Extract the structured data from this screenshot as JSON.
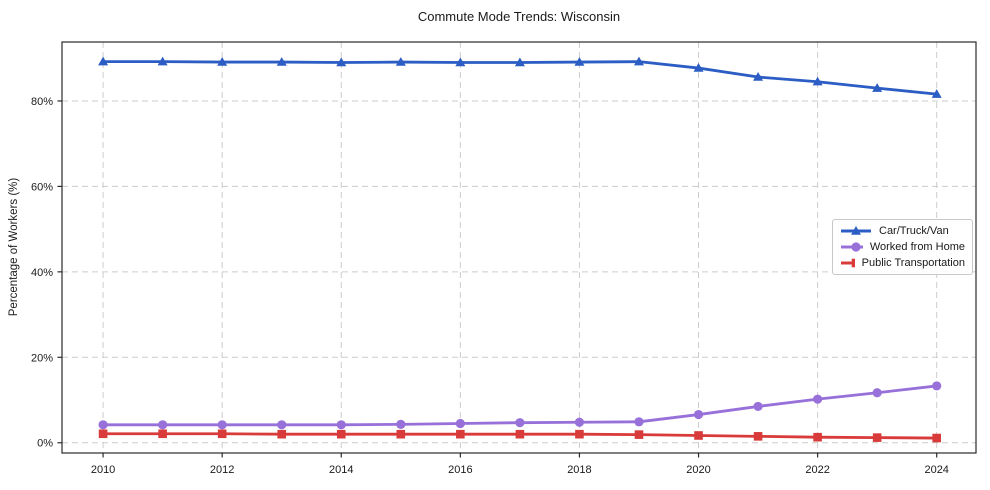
{
  "chart_data": {
    "type": "line",
    "title": "Commute Mode Trends: Wisconsin",
    "xlabel": "",
    "ylabel": "Percentage of Workers (%)",
    "x": [
      2010,
      2011,
      2012,
      2013,
      2014,
      2015,
      2016,
      2017,
      2018,
      2019,
      2020,
      2021,
      2022,
      2023,
      2024
    ],
    "series": [
      {
        "name": "Car/Truck/Van",
        "color": "#2b5dc4",
        "marker": "triangle",
        "values": [
          89.2,
          89.2,
          89.1,
          89.1,
          89.0,
          89.1,
          89.0,
          89.0,
          89.1,
          89.2,
          87.7,
          85.6,
          84.5,
          83.0,
          81.6
        ]
      },
      {
        "name": "Worked from Home",
        "color": "#9770d9",
        "marker": "circle",
        "values": [
          4.2,
          4.2,
          4.2,
          4.2,
          4.2,
          4.3,
          4.5,
          4.7,
          4.8,
          4.9,
          6.6,
          8.5,
          10.2,
          11.7,
          13.3
        ]
      },
      {
        "name": "Public Transportation",
        "color": "#d93b3b",
        "marker": "square",
        "values": [
          2.1,
          2.1,
          2.1,
          2.0,
          2.0,
          2.0,
          2.0,
          2.0,
          2.0,
          1.9,
          1.7,
          1.5,
          1.3,
          1.2,
          1.1
        ]
      }
    ],
    "xlim": [
      2009.31,
      2024.66
    ],
    "ylim": [
      -2.4,
      93.8
    ],
    "x_ticks": [
      2010,
      2012,
      2014,
      2016,
      2018,
      2020,
      2022,
      2024
    ],
    "y_ticks": [
      0,
      20,
      40,
      60,
      80
    ],
    "y_tick_suffix": "%",
    "grid": {
      "style": "dashed",
      "on": true
    },
    "legend_position": "center-right"
  },
  "colors": {
    "car_line": "#2b5dc4",
    "home_line": "#9770d9",
    "transit_line": "#d93b3b",
    "grid": "#cccccc",
    "spine": "#2a2a2a",
    "text": "#1a1a1a",
    "background": "#ffffff"
  }
}
